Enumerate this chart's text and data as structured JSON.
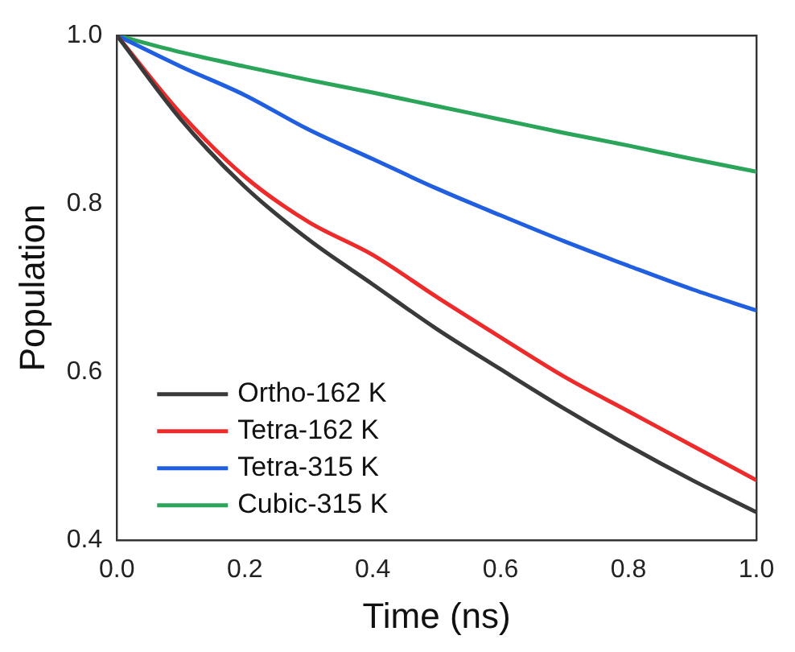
{
  "chart_data": {
    "type": "line",
    "xlabel": "Time (ns)",
    "ylabel": "Population",
    "x": [
      0,
      0.1,
      0.2,
      0.3,
      0.4,
      0.5,
      0.6,
      0.7,
      0.8,
      0.9,
      1.0
    ],
    "series": [
      {
        "name": "Ortho-162 K",
        "color": "#3a3a3a",
        "values": [
          1.0,
          0.9,
          0.82,
          0.757,
          0.704,
          0.651,
          0.603,
          0.556,
          0.512,
          0.471,
          0.433
        ]
      },
      {
        "name": "Tetra-162 K",
        "color": "#ee2b2b",
        "values": [
          1.0,
          0.907,
          0.832,
          0.778,
          0.739,
          0.689,
          0.641,
          0.594,
          0.553,
          0.512,
          0.471
        ]
      },
      {
        "name": "Tetra-315 K",
        "color": "#1f5fe0",
        "values": [
          1.0,
          0.963,
          0.929,
          0.888,
          0.853,
          0.818,
          0.786,
          0.755,
          0.726,
          0.698,
          0.673
        ]
      },
      {
        "name": "Cubic-315 K",
        "color": "#2aa55a",
        "values": [
          1.0,
          0.98,
          0.963,
          0.947,
          0.932,
          0.916,
          0.9,
          0.884,
          0.869,
          0.853,
          0.838
        ]
      }
    ],
    "xlim": [
      0,
      1
    ],
    "ylim": [
      0.4,
      1
    ],
    "xticks": [
      {
        "value": 0,
        "label": "0.0"
      },
      0.2,
      0.4,
      0.6,
      0.8,
      {
        "value": 1,
        "label": "1.0"
      }
    ],
    "yticks": [
      0.4,
      0.6,
      0.8,
      {
        "value": 1,
        "label": "1.0"
      }
    ],
    "grid": false,
    "legend": "bottom left",
    "marker": "none",
    "line_style": "solid"
  }
}
